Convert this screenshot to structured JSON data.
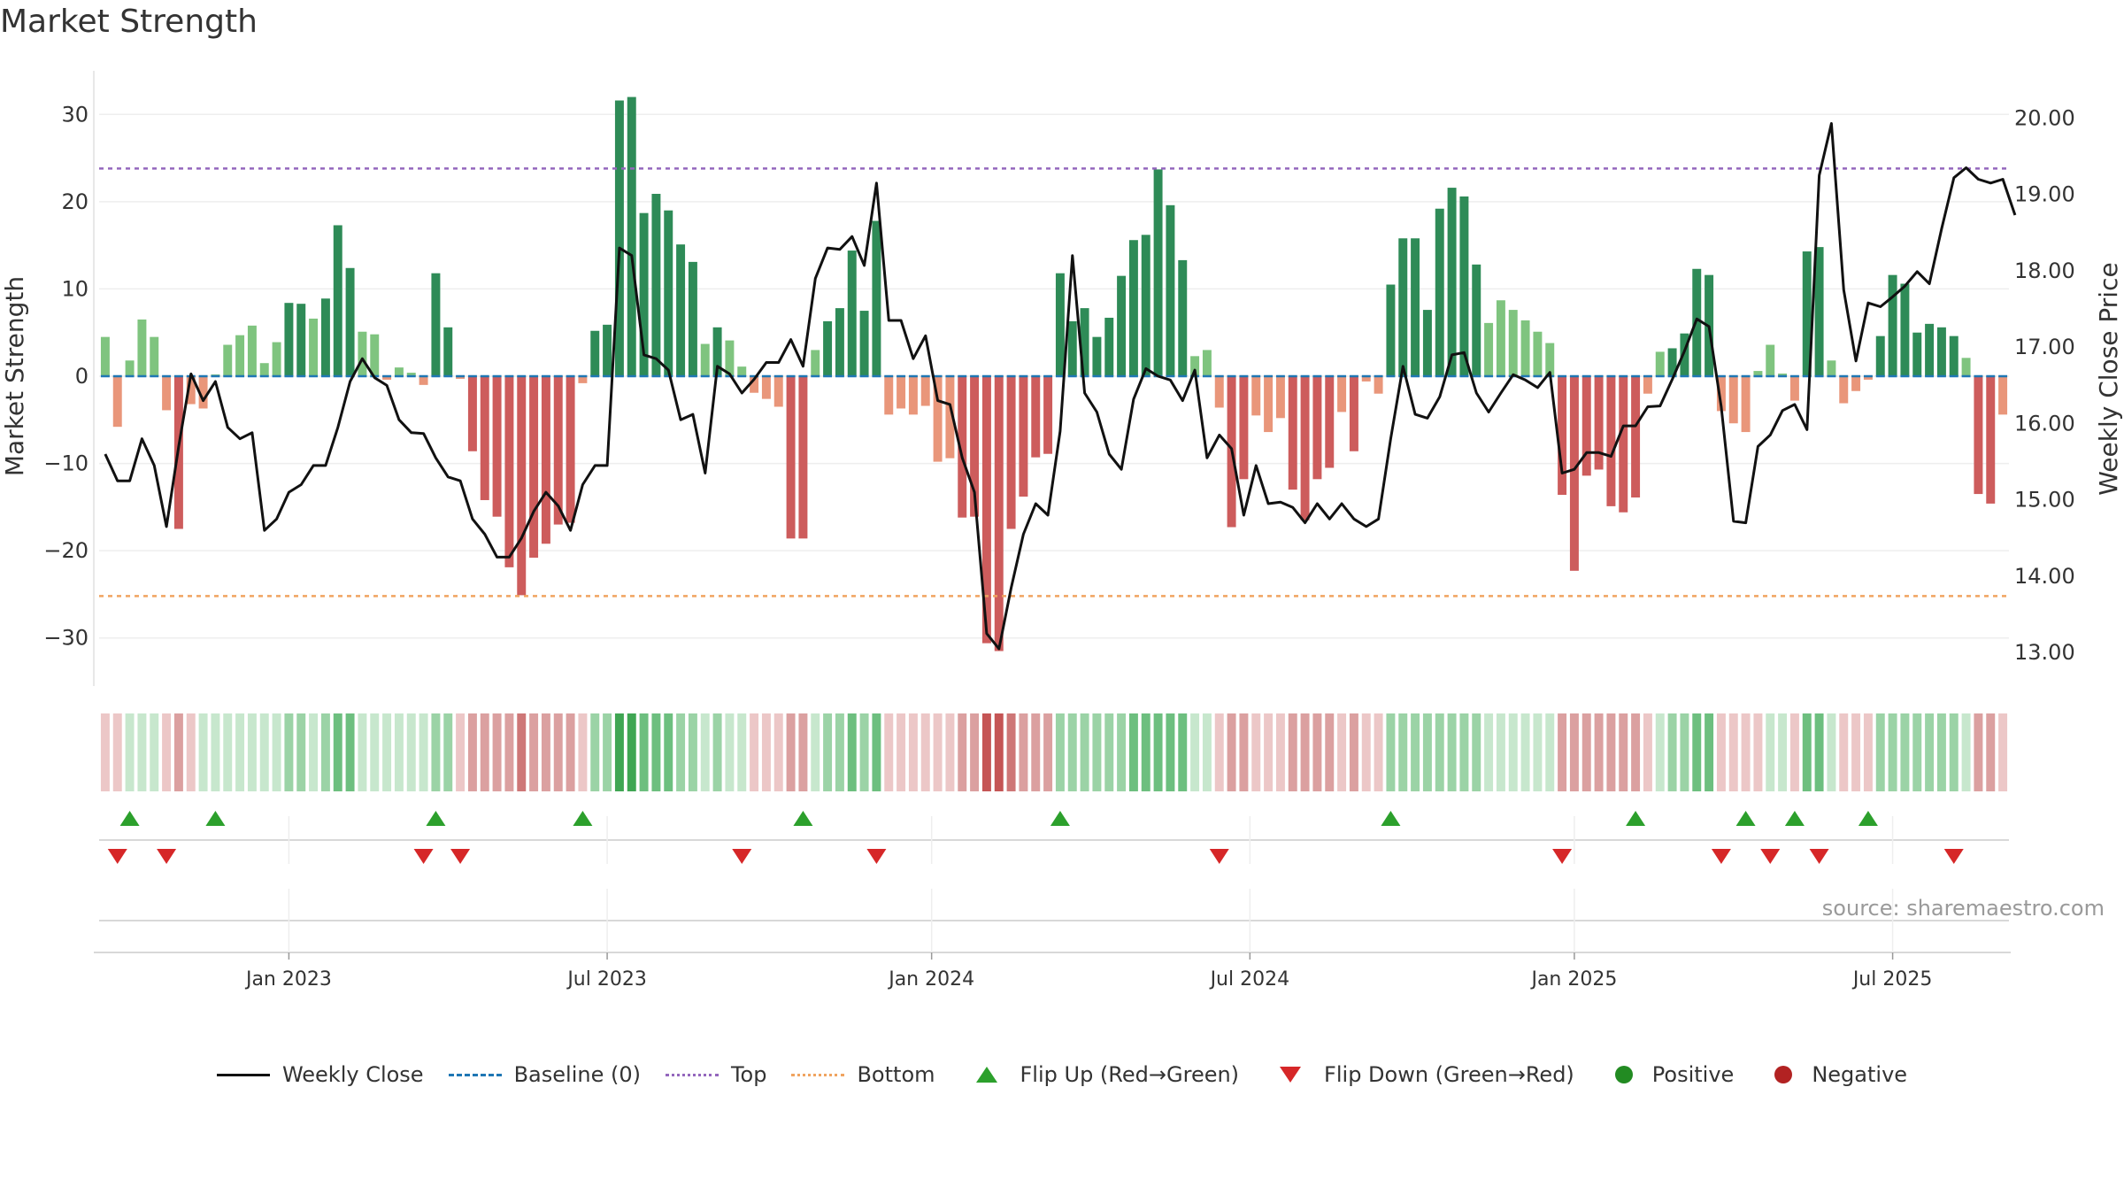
{
  "title": "Market Strength",
  "source": "source: sharemaestro.com",
  "colors": {
    "pos_strong": "#2e8b57",
    "pos_light": "#7fc47f",
    "neg_strong": "#cd5c5c",
    "neg_light": "#e9967a",
    "close_line": "#111111",
    "baseline": "#1f77b4",
    "top": "#9467bd",
    "bottom": "#f0a460",
    "flip_up": "#2ca02c",
    "flip_down": "#d62728",
    "positive": "#228b22",
    "negative": "#b22222"
  },
  "legend": [
    {
      "key": "close",
      "label": "Weekly Close"
    },
    {
      "key": "baseline",
      "label": "Baseline (0)"
    },
    {
      "key": "top",
      "label": "Top"
    },
    {
      "key": "bottom",
      "label": "Bottom"
    },
    {
      "key": "flip_up",
      "label": "Flip Up (Red→Green)"
    },
    {
      "key": "flip_down",
      "label": "Flip Down (Green→Red)"
    },
    {
      "key": "positive",
      "label": "Positive"
    },
    {
      "key": "negative",
      "label": "Negative"
    }
  ],
  "chart_data": {
    "type": "bar",
    "title": "Market Strength",
    "xlabel": "",
    "ylabel": "Market Strength",
    "y2label": "Weekly Close Price",
    "ylim": [
      -35,
      35
    ],
    "y2lim": [
      12.62,
      20.62
    ],
    "yticks": [
      -30,
      -20,
      -10,
      0,
      10,
      20,
      30
    ],
    "y2ticks": [
      "13.00",
      "14.00",
      "15.00",
      "16.00",
      "17.00",
      "18.00",
      "19.00",
      "20.00"
    ],
    "y2tick_values": [
      13,
      14,
      15,
      16,
      17,
      18,
      19,
      20
    ],
    "xticks": [
      "Jan 2023",
      "Jul 2023",
      "Jan 2024",
      "Jul 2024",
      "Jan 2025",
      "Jul 2025"
    ],
    "xtick_weeks": [
      15,
      41,
      67.5,
      93.5,
      120,
      146
    ],
    "top": 23.8,
    "bottom": -25.2,
    "baseline": 0,
    "strength": [
      4.5,
      -5.8,
      1.8,
      6.5,
      4.5,
      -3.9,
      -17.5,
      -3.2,
      -3.7,
      0.2,
      3.6,
      4.7,
      5.8,
      1.5,
      3.9,
      8.4,
      8.3,
      6.6,
      8.9,
      17.3,
      12.4,
      5.1,
      4.8,
      -0.4,
      1.0,
      0.4,
      -1.0,
      11.8,
      5.6,
      -0.3,
      -8.6,
      -14.2,
      -16.1,
      -21.9,
      -25.1,
      -20.8,
      -19.2,
      -17.0,
      -16.8,
      -0.8,
      5.2,
      5.9,
      31.6,
      32.0,
      18.7,
      20.9,
      19.0,
      15.1,
      13.1,
      3.7,
      5.6,
      4.1,
      1.1,
      -1.9,
      -2.6,
      -3.5,
      -18.6,
      -18.6,
      3.0,
      6.3,
      7.8,
      14.4,
      7.5,
      17.8,
      -4.4,
      -3.7,
      -4.4,
      -3.4,
      -9.8,
      -9.4,
      -16.2,
      -16.1,
      -30.6,
      -31.5,
      -17.5,
      -13.8,
      -9.3,
      -8.9,
      11.8,
      6.3,
      7.8,
      4.5,
      6.7,
      11.5,
      15.6,
      16.2,
      23.7,
      19.6,
      13.3,
      2.3,
      3.0,
      -3.6,
      -17.3,
      -11.8,
      -4.5,
      -6.4,
      -4.8,
      -13.0,
      -16.5,
      -11.8,
      -10.5,
      -4.1,
      -8.6,
      -0.6,
      -2.0,
      10.5,
      15.8,
      15.8,
      7.6,
      19.2,
      21.6,
      20.6,
      12.8,
      6.1,
      8.7,
      7.6,
      6.4,
      5.1,
      3.8,
      -13.6,
      -22.3,
      -11.4,
      -10.7,
      -14.9,
      -15.6,
      -13.9,
      -2.0,
      2.8,
      3.2,
      4.9,
      12.3,
      11.6,
      -4.0,
      -5.4,
      -6.4,
      0.6,
      3.6,
      0.3,
      -2.8,
      14.3,
      14.8,
      1.8,
      -3.1,
      -1.7,
      -0.4,
      4.6,
      11.6,
      10.6,
      5.0,
      6.0,
      5.6,
      4.6,
      2.1,
      -13.5,
      -14.6,
      -4.4
    ],
    "weekly_close": [
      15.6,
      15.25,
      15.25,
      15.8,
      15.45,
      14.65,
      15.7,
      16.65,
      16.3,
      16.55,
      15.95,
      15.8,
      15.88,
      14.6,
      14.75,
      15.1,
      15.2,
      15.45,
      15.45,
      15.95,
      16.55,
      16.85,
      16.6,
      16.5,
      16.05,
      15.88,
      15.87,
      15.55,
      15.3,
      15.25,
      14.75,
      14.55,
      14.25,
      14.25,
      14.5,
      14.85,
      15.1,
      14.92,
      14.6,
      15.2,
      15.45,
      15.45,
      18.3,
      18.2,
      16.9,
      16.85,
      16.7,
      16.05,
      16.12,
      15.35,
      16.75,
      16.65,
      16.4,
      16.58,
      16.8,
      16.8,
      17.1,
      16.75,
      17.9,
      18.3,
      18.28,
      18.45,
      18.07,
      19.15,
      17.35,
      17.35,
      16.85,
      17.15,
      16.3,
      16.25,
      15.55,
      15.1,
      13.25,
      13.05,
      13.85,
      14.55,
      14.95,
      14.8,
      15.9,
      18.2,
      16.4,
      16.15,
      15.6,
      15.4,
      16.32,
      16.72,
      16.62,
      16.57,
      16.3,
      16.7,
      15.55,
      15.85,
      15.67,
      14.8,
      15.45,
      14.95,
      14.97,
      14.9,
      14.7,
      14.95,
      14.75,
      14.95,
      14.75,
      14.65,
      14.75,
      15.8,
      16.75,
      16.12,
      16.07,
      16.35,
      16.9,
      16.93,
      16.4,
      16.15,
      16.4,
      16.64,
      16.57,
      16.47,
      16.67,
      15.35,
      15.4,
      15.62,
      15.62,
      15.57,
      15.97,
      15.97,
      16.22,
      16.23,
      16.58,
      16.95,
      17.37,
      17.27,
      16.22,
      14.72,
      14.7,
      15.7,
      15.85,
      16.17,
      16.25,
      15.92,
      19.25,
      19.93,
      17.75,
      16.82,
      17.58,
      17.53,
      17.66,
      17.8,
      17.99,
      17.83,
      18.55,
      19.22,
      19.35,
      19.2,
      19.15,
      19.2,
      18.73
    ],
    "states": [
      -1,
      -1,
      1,
      1,
      1,
      -1,
      -2,
      -1,
      1,
      1,
      1,
      1,
      1,
      1,
      1,
      2,
      2,
      1,
      2,
      3,
      3,
      1,
      1,
      1,
      1,
      1,
      1,
      2,
      2,
      -1,
      -2,
      -2,
      -2,
      -2,
      -3,
      -2,
      -2,
      -2,
      -2,
      -1,
      2,
      2,
      4,
      4,
      3,
      3,
      3,
      2,
      2,
      1,
      2,
      1,
      1,
      -1,
      -1,
      -1,
      -2,
      -2,
      1,
      2,
      2,
      3,
      2,
      3,
      -1,
      -1,
      -1,
      -1,
      -1,
      -1,
      -2,
      -2,
      -4,
      -4,
      -3,
      -2,
      -2,
      -2,
      2,
      2,
      2,
      2,
      2,
      2,
      3,
      3,
      3,
      3,
      3,
      1,
      1,
      -1,
      -2,
      -2,
      -1,
      -1,
      -1,
      -2,
      -2,
      -2,
      -2,
      -1,
      -2,
      -1,
      -1,
      2,
      2,
      2,
      2,
      2,
      2,
      2,
      2,
      1,
      1,
      1,
      1,
      1,
      1,
      -2,
      -2,
      -2,
      -2,
      -2,
      -2,
      -2,
      -1,
      1,
      2,
      2,
      3,
      3,
      -1,
      -1,
      -1,
      -1,
      1,
      1,
      -1,
      3,
      3,
      1,
      -1,
      -1,
      -1,
      2,
      2,
      2,
      2,
      2,
      2,
      2,
      1,
      -2,
      -2,
      -1
    ],
    "flip_up_weeks": [
      2,
      9,
      27,
      39,
      57,
      78,
      105,
      125,
      134,
      138,
      144
    ],
    "flip_down_weeks": [
      1,
      5,
      26,
      29,
      52,
      63,
      91,
      119,
      132,
      136,
      140,
      151
    ]
  }
}
